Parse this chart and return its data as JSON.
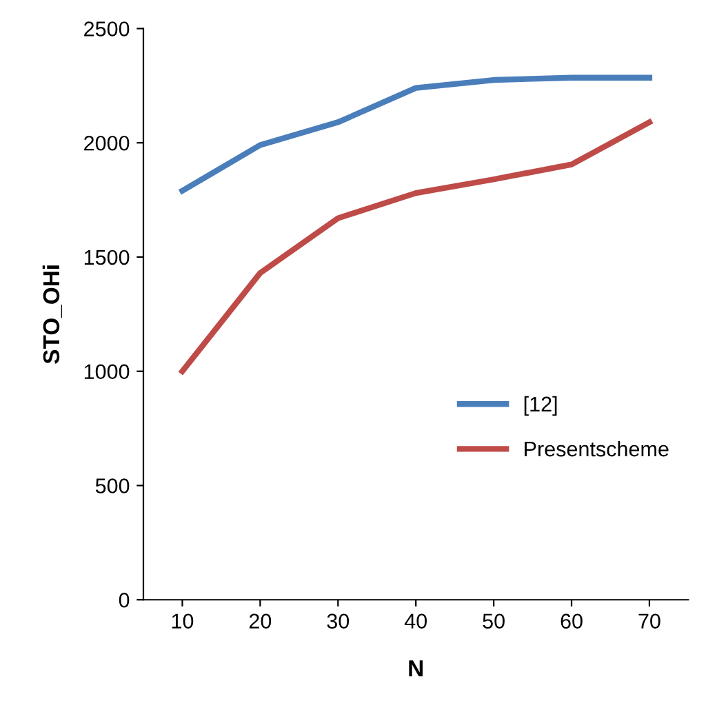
{
  "chart_data": {
    "type": "line",
    "xlabel": "N",
    "ylabel": "STO_OHi",
    "categories": [
      "10",
      "20",
      "30",
      "40",
      "50",
      "60",
      "70"
    ],
    "series": [
      {
        "name": "[12]",
        "color": "#4a7ebb",
        "values": [
          1790,
          1990,
          2090,
          2240,
          2275,
          2285,
          2285
        ]
      },
      {
        "name": "Presentscheme",
        "color": "#be4b48",
        "values": [
          1000,
          1430,
          1670,
          1780,
          1840,
          1905,
          2090
        ]
      }
    ],
    "ylim": [
      0,
      2500
    ],
    "yticks": [
      0,
      500,
      1000,
      1500,
      2000,
      2500
    ],
    "grid": false,
    "legend": "right",
    "marker": "none",
    "line_style": "solid"
  }
}
